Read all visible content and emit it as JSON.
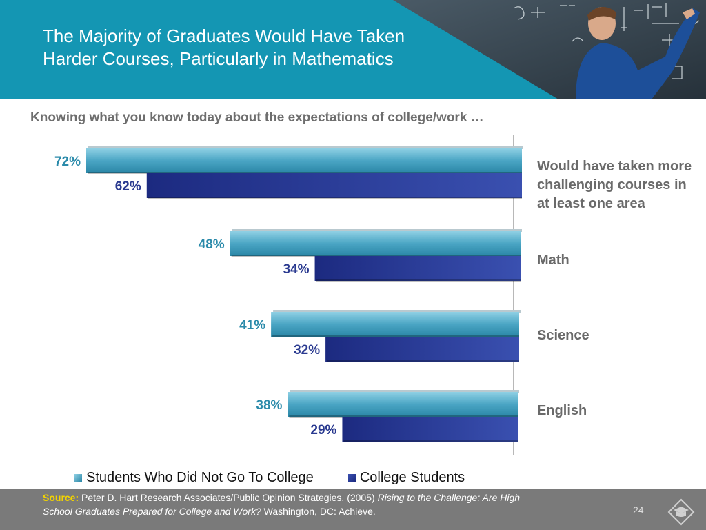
{
  "slide": {
    "title_lines": [
      "The Majority of Graduates Would Have Taken",
      "Harder Courses, Particularly in Mathematics"
    ],
    "subtitle": "Knowing what you know today about the expectations of college/work …",
    "page_number": "24"
  },
  "chart_data": {
    "type": "bar",
    "orientation": "horizontal",
    "categories": [
      "Would have taken more challenging courses in at least one area",
      "Math",
      "Science",
      "English"
    ],
    "series": [
      {
        "name": "Students Who Did Not Go To College",
        "values": [
          72,
          48,
          41,
          38
        ],
        "labels": [
          "72%",
          "48%",
          "41%",
          "38%"
        ],
        "color": "#3d9bbb"
      },
      {
        "name": "College Students",
        "values": [
          62,
          34,
          32,
          29
        ],
        "labels": [
          "62%",
          "34%",
          "32%",
          "29%"
        ],
        "color": "#2a3a90"
      }
    ],
    "unit": "%",
    "legend_position": "bottom"
  },
  "source": {
    "label": "Source:",
    "text": "Peter D. Hart Research Associates/Public Opinion Strategies. (2005)",
    "italic_title": "Rising to the Challenge: Are High School Graduates Prepared for College and Work?",
    "publisher": "Washington, DC: Achieve."
  },
  "icons": {
    "photo": "teacher-at-chalkboard-photo",
    "logo": "graduation-cap-logo-icon"
  },
  "colors": {
    "header": "#1496b3",
    "footer": "#7a7a7a",
    "source_label": "#f2d300",
    "category_text": "#6a6a6a"
  }
}
